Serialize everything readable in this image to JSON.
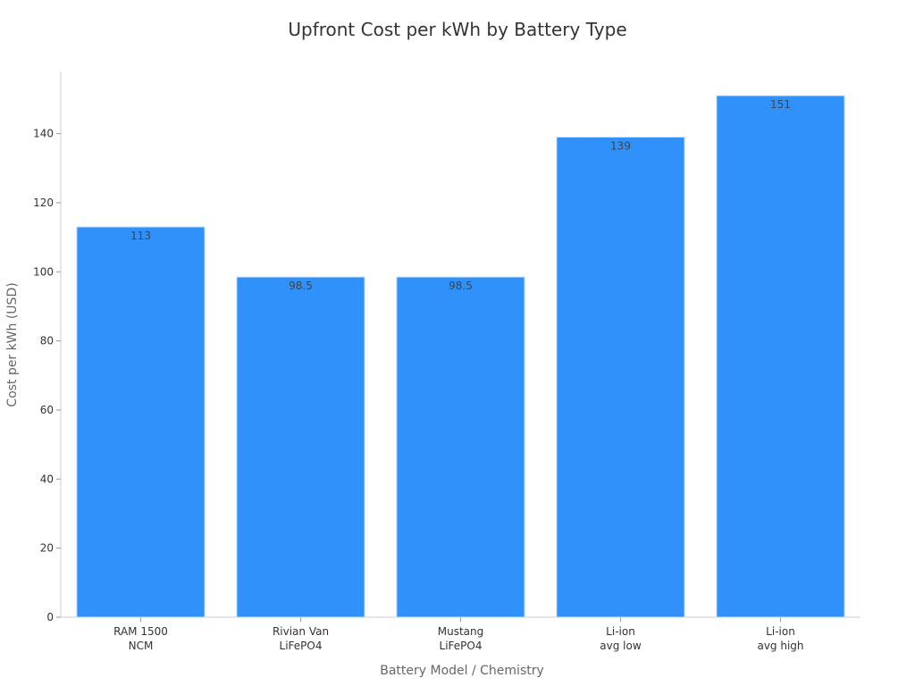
{
  "chart_data": {
    "type": "bar",
    "title": "Upfront Cost per kWh by Battery Type",
    "xlabel": "Battery Model / Chemistry",
    "ylabel": "Cost per kWh (USD)",
    "categories": [
      [
        "RAM 1500",
        "NCM"
      ],
      [
        "Rivian Van",
        "LiFePO4"
      ],
      [
        "Mustang",
        "LiFePO4"
      ],
      [
        "Li-ion",
        "avg low"
      ],
      [
        "Li-ion",
        "avg high"
      ]
    ],
    "values": [
      113,
      98.5,
      98.5,
      139,
      151
    ],
    "value_labels": [
      "113",
      "98.5",
      "98.5",
      "139",
      "151"
    ],
    "ylim": [
      0,
      158
    ],
    "yticks": [
      0,
      20,
      40,
      60,
      80,
      100,
      120,
      140
    ],
    "grid": false,
    "bar_color": "#2f91f9"
  }
}
